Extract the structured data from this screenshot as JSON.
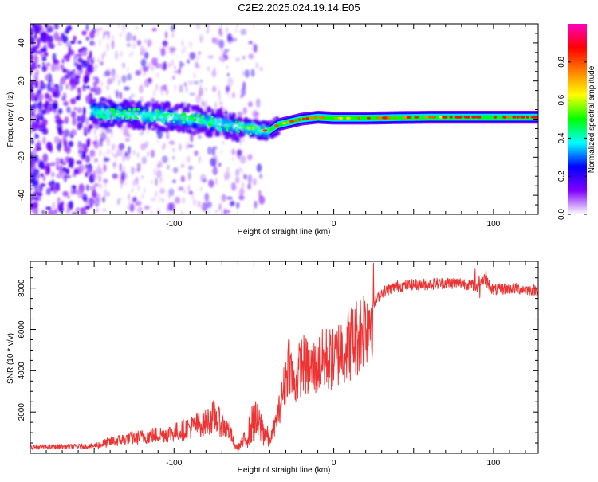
{
  "title": "C2E2.2025.024.19.14.E05",
  "chart_data": [
    {
      "type": "heatmap",
      "xlabel": "Height of straight line (km)",
      "ylabel": "Frequency (Hz)",
      "xlim": [
        -190,
        128
      ],
      "ylim": [
        -50,
        50
      ],
      "xticks": [
        -100,
        0,
        100
      ],
      "yticks": [
        -40,
        -20,
        0,
        20,
        40
      ],
      "ridge": {
        "x": [
          -150,
          -140,
          -130,
          -120,
          -110,
          -100,
          -90,
          -80,
          -70,
          -60,
          -50,
          -45,
          -40,
          -35,
          -30,
          -25,
          -20,
          -10,
          0,
          10,
          20,
          40,
          60,
          80,
          100,
          128
        ],
        "y": [
          4,
          3,
          2.5,
          2,
          1.5,
          1,
          0,
          -1,
          -3,
          -4,
          -5,
          -6,
          -6,
          -3,
          -2,
          -1,
          0,
          1,
          0.5,
          0.5,
          0.5,
          0.8,
          1,
          1,
          1,
          1
        ]
      },
      "colorbar": {
        "label": "Normalized spectral amplitude",
        "ticks": [
          "0.0",
          "0.2",
          "0.4",
          "0.6",
          "0.8"
        ],
        "range": [
          0,
          1
        ],
        "colors": [
          "#ffffff",
          "#8000ff",
          "#0000ff",
          "#00ffff",
          "#00ff00",
          "#ffff00",
          "#ff8000",
          "#ff0000",
          "#ff00c0"
        ]
      }
    },
    {
      "type": "line",
      "xlabel": "Height of straight line (km)",
      "ylabel": "SNR (10 * v/v)",
      "xlim": [
        -190,
        128
      ],
      "ylim": [
        0,
        9300
      ],
      "xticks": [
        -100,
        0,
        100
      ],
      "yticks": [
        2000,
        4000,
        6000,
        8000
      ],
      "color": "#ee3333",
      "series": [
        {
          "x": [
            -190,
            -170,
            -150,
            -140,
            -130,
            -120,
            -110,
            -100,
            -90,
            -80,
            -75,
            -70,
            -65,
            -62,
            -60,
            -55,
            -50,
            -45,
            -40,
            -35,
            -30,
            -28,
            -25,
            -20,
            -15,
            -10,
            -5,
            0,
            5,
            10,
            15,
            20,
            25,
            30,
            40,
            50,
            60,
            70,
            80,
            90,
            94,
            100,
            110,
            128
          ],
          "values": [
            300,
            320,
            350,
            550,
            700,
            800,
            900,
            1000,
            1250,
            1500,
            1800,
            1400,
            1050,
            350,
            280,
            700,
            1600,
            1200,
            600,
            1800,
            3600,
            4600,
            3200,
            4400,
            4000,
            4300,
            4600,
            4500,
            5100,
            5300,
            5700,
            6300,
            7200,
            7800,
            8100,
            8150,
            8200,
            8250,
            8250,
            8100,
            8500,
            7900,
            8000,
            7900
          ]
        }
      ]
    }
  ]
}
